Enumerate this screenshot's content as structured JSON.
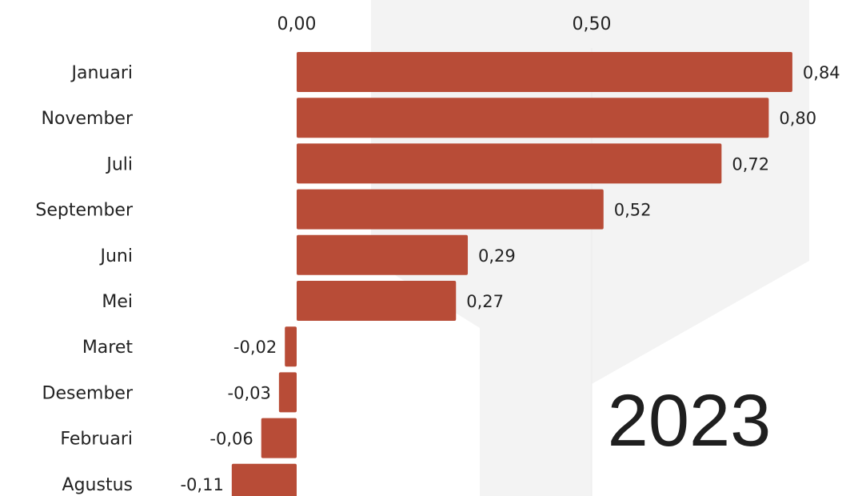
{
  "chart_data": {
    "type": "bar",
    "orientation": "horizontal",
    "categories": [
      "Januari",
      "November",
      "Juli",
      "September",
      "Juni",
      "Mei",
      "Maret",
      "Desember",
      "Februari",
      "Agustus"
    ],
    "values": [
      0.84,
      0.8,
      0.72,
      0.52,
      0.29,
      0.27,
      -0.02,
      -0.03,
      -0.06,
      -0.11
    ],
    "value_labels": [
      "0,84",
      "0,80",
      "0,72",
      "0,52",
      "0,29",
      "0,27",
      "-0,02",
      "-0,03",
      "-0,06",
      "-0,11"
    ],
    "x_ticks": [
      0.0,
      0.5
    ],
    "x_tick_labels": [
      "0,00",
      "0,50"
    ],
    "xlim": [
      -0.15,
      0.9
    ],
    "year": "2023",
    "bar_color": "#b84c37",
    "background_shape_color": "#f3f3f3",
    "grid": true,
    "legend": "none"
  }
}
